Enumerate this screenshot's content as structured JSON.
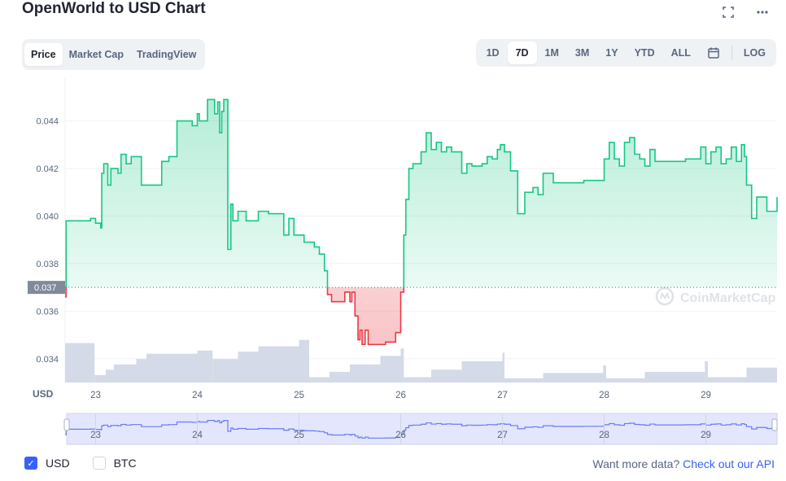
{
  "header": {
    "title": "OpenWorld to USD Chart",
    "expand_icon": "expand-icon",
    "more_icon": "more-horizontal-icon"
  },
  "tabs": [
    {
      "label": "Price",
      "active": true
    },
    {
      "label": "Market Cap",
      "active": false
    },
    {
      "label": "TradingView",
      "active": false
    }
  ],
  "ranges": [
    {
      "label": "1D",
      "active": false
    },
    {
      "label": "7D",
      "active": true
    },
    {
      "label": "1M",
      "active": false
    },
    {
      "label": "3M",
      "active": false
    },
    {
      "label": "1Y",
      "active": false
    },
    {
      "label": "YTD",
      "active": false
    },
    {
      "label": "ALL",
      "active": false
    }
  ],
  "calendar_icon": "calendar-icon",
  "log_label": "LOG",
  "watermark": "CoinMarketCap",
  "legend": [
    {
      "label": "USD",
      "checked": true
    },
    {
      "label": "BTC",
      "checked": false
    }
  ],
  "api": {
    "prefix": "Want more data?",
    "link": "Check out our API"
  },
  "colors": {
    "up": "#16c784",
    "down": "#ea3943",
    "volume": "#cfd6e4",
    "navigator": "#6a7df0",
    "accent": "#3861fb"
  },
  "chart_data": {
    "type": "line",
    "title": "OpenWorld to USD Chart",
    "ylabel": "USD",
    "ylim": [
      0.033,
      0.0458
    ],
    "xlim": [
      22.7,
      29.7
    ],
    "yticks": [
      "0.044",
      "0.042",
      "0.040",
      "0.038",
      "0.036",
      "0.034"
    ],
    "xticks": [
      "23",
      "24",
      "25",
      "26",
      "27",
      "28",
      "29"
    ],
    "reference_price": 0.037,
    "reference_label": "0.037",
    "grid": true,
    "series": [
      {
        "x": [
          22.7,
          22.71,
          22.95,
          23.0,
          23.05,
          23.06,
          23.08,
          23.12,
          23.15,
          23.22,
          23.25,
          23.3,
          23.35,
          23.45,
          23.6,
          23.65,
          23.72,
          23.8,
          23.88,
          23.95,
          23.98,
          24.0,
          24.02,
          24.1,
          24.17,
          24.2,
          24.22,
          24.24,
          24.26,
          24.3,
          24.33,
          24.35,
          24.4,
          24.48,
          24.55,
          24.6,
          24.7,
          24.78,
          24.85,
          24.9,
          24.95,
          25.0,
          25.05,
          25.15,
          25.2,
          25.25,
          25.28,
          25.32,
          25.33,
          25.42,
          25.45,
          25.5,
          25.52,
          25.55,
          25.58,
          25.6,
          25.62,
          25.65,
          25.68,
          25.75,
          25.85,
          25.95,
          26.0,
          26.03,
          26.05,
          26.08,
          26.12,
          26.2,
          26.25,
          26.3,
          26.35,
          26.4,
          26.45,
          26.5,
          26.55,
          26.6,
          26.65,
          26.7,
          26.75,
          26.8,
          26.85,
          26.9,
          26.95,
          26.98,
          27.02,
          27.08,
          27.15,
          27.22,
          27.3,
          27.35,
          27.4,
          27.5,
          27.6,
          27.7,
          27.8,
          27.9,
          28.0,
          28.05,
          28.1,
          28.15,
          28.2,
          28.25,
          28.3,
          28.35,
          28.4,
          28.45,
          28.5,
          28.6,
          28.7,
          28.8,
          28.9,
          28.95,
          29.0,
          29.05,
          29.1,
          29.15,
          29.2,
          29.25,
          29.3,
          29.35,
          29.38,
          29.4,
          29.45,
          29.5,
          29.55,
          29.6,
          29.7
        ],
        "values": [
          0.0366,
          0.0398,
          0.0399,
          0.0397,
          0.0395,
          0.0418,
          0.0422,
          0.0413,
          0.042,
          0.0418,
          0.0426,
          0.0422,
          0.0425,
          0.0413,
          0.0413,
          0.0423,
          0.0425,
          0.044,
          0.044,
          0.0438,
          0.0438,
          0.0443,
          0.044,
          0.0449,
          0.0443,
          0.0448,
          0.0435,
          0.0444,
          0.0449,
          0.0386,
          0.0405,
          0.0398,
          0.0402,
          0.0398,
          0.0398,
          0.0402,
          0.0401,
          0.0401,
          0.0392,
          0.0399,
          0.0392,
          0.0392,
          0.0389,
          0.0387,
          0.0384,
          0.0377,
          0.0367,
          0.0364,
          0.0364,
          0.0364,
          0.0368,
          0.0364,
          0.0368,
          0.0358,
          0.0348,
          0.0352,
          0.0346,
          0.0352,
          0.0346,
          0.0346,
          0.0347,
          0.0351,
          0.0368,
          0.0392,
          0.0407,
          0.042,
          0.0422,
          0.0427,
          0.0435,
          0.0428,
          0.0431,
          0.0427,
          0.0429,
          0.0427,
          0.0427,
          0.0418,
          0.0422,
          0.0421,
          0.0421,
          0.0422,
          0.0425,
          0.0424,
          0.0428,
          0.043,
          0.0427,
          0.0419,
          0.0401,
          0.041,
          0.0412,
          0.0409,
          0.0418,
          0.0414,
          0.0414,
          0.0414,
          0.0415,
          0.0415,
          0.0424,
          0.0431,
          0.0424,
          0.0421,
          0.0431,
          0.0433,
          0.0426,
          0.0424,
          0.0421,
          0.0428,
          0.0423,
          0.0423,
          0.0423,
          0.0424,
          0.0424,
          0.0429,
          0.0422,
          0.0427,
          0.0429,
          0.0422,
          0.0424,
          0.0429,
          0.0423,
          0.043,
          0.0425,
          0.0413,
          0.0399,
          0.0408,
          0.0408,
          0.0402,
          0.0408
        ]
      }
    ],
    "volume": {
      "x": [
        22.7,
        22.99,
        23.1,
        23.18,
        23.4,
        23.5,
        24.0,
        24.15,
        24.4,
        24.6,
        25.0,
        25.1,
        25.3,
        25.5,
        25.8,
        26.0,
        26.03,
        26.3,
        26.6,
        27.0,
        27.02,
        27.4,
        27.99,
        28.02,
        28.4,
        28.99,
        29.02,
        29.4,
        29.7
      ],
      "values": [
        0.37,
        0.07,
        0.12,
        0.17,
        0.22,
        0.27,
        0.3,
        0.22,
        0.29,
        0.34,
        0.4,
        0.05,
        0.1,
        0.17,
        0.25,
        0.32,
        0.05,
        0.12,
        0.2,
        0.28,
        0.04,
        0.09,
        0.16,
        0.04,
        0.1,
        0.2,
        0.05,
        0.14,
        0.2
      ]
    },
    "navigator": {
      "xticks": [
        "23",
        "24",
        "25",
        "26",
        "27",
        "28",
        "29"
      ]
    }
  }
}
